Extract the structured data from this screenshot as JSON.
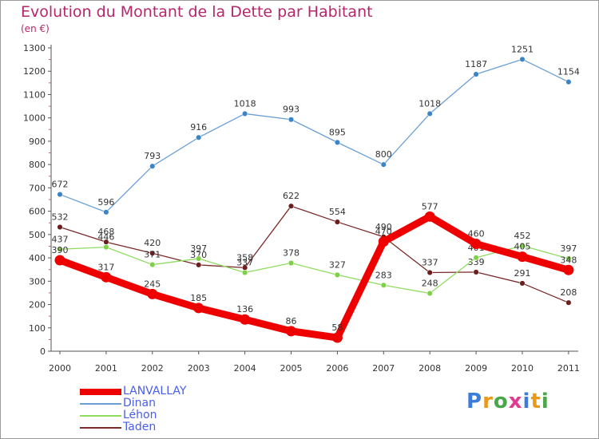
{
  "title": "Evolution du Montant de la Dette par Habitant",
  "subtitle": "(en €)",
  "logo": {
    "text": "Proxiti",
    "colors": [
      "#3b7dd8",
      "#e89a1c",
      "#4aa64a",
      "#e13a8f",
      "#3b7dd8",
      "#e89a1c",
      "#4aa64a"
    ]
  },
  "chart_data": {
    "type": "line",
    "x": [
      2000,
      2001,
      2002,
      2003,
      2004,
      2005,
      2006,
      2007,
      2008,
      2009,
      2010,
      2011
    ],
    "yticks": [
      0,
      100,
      200,
      300,
      400,
      500,
      600,
      700,
      800,
      900,
      1000,
      1100,
      1200,
      1300
    ],
    "ylim": [
      0,
      1300
    ],
    "grid": false,
    "legend_position": "bottom-left",
    "series": [
      {
        "name": "Dinan",
        "color": "#6a9fd4",
        "dot": "#3d84c6",
        "values": [
          672,
          596,
          793,
          916,
          1018,
          993,
          895,
          800,
          1018,
          1187,
          1251,
          1154
        ]
      },
      {
        "name": "Taden",
        "color": "#7a2a2a",
        "dot": "#6a1e1e",
        "values": [
          532,
          468,
          420,
          370,
          358,
          622,
          554,
          490,
          337,
          339,
          291,
          208
        ]
      },
      {
        "name": "Léhon",
        "color": "#8edc5e",
        "dot": "#7fcf4a",
        "values": [
          437,
          446,
          371,
          397,
          337,
          378,
          327,
          283,
          248,
          401,
          452,
          397
        ]
      },
      {
        "name": "LANVALLAY",
        "color": "#ee0000",
        "dot": "#ee0000",
        "values": [
          390,
          317,
          245,
          185,
          136,
          86,
          58,
          470,
          577,
          460,
          405,
          348
        ]
      }
    ]
  }
}
